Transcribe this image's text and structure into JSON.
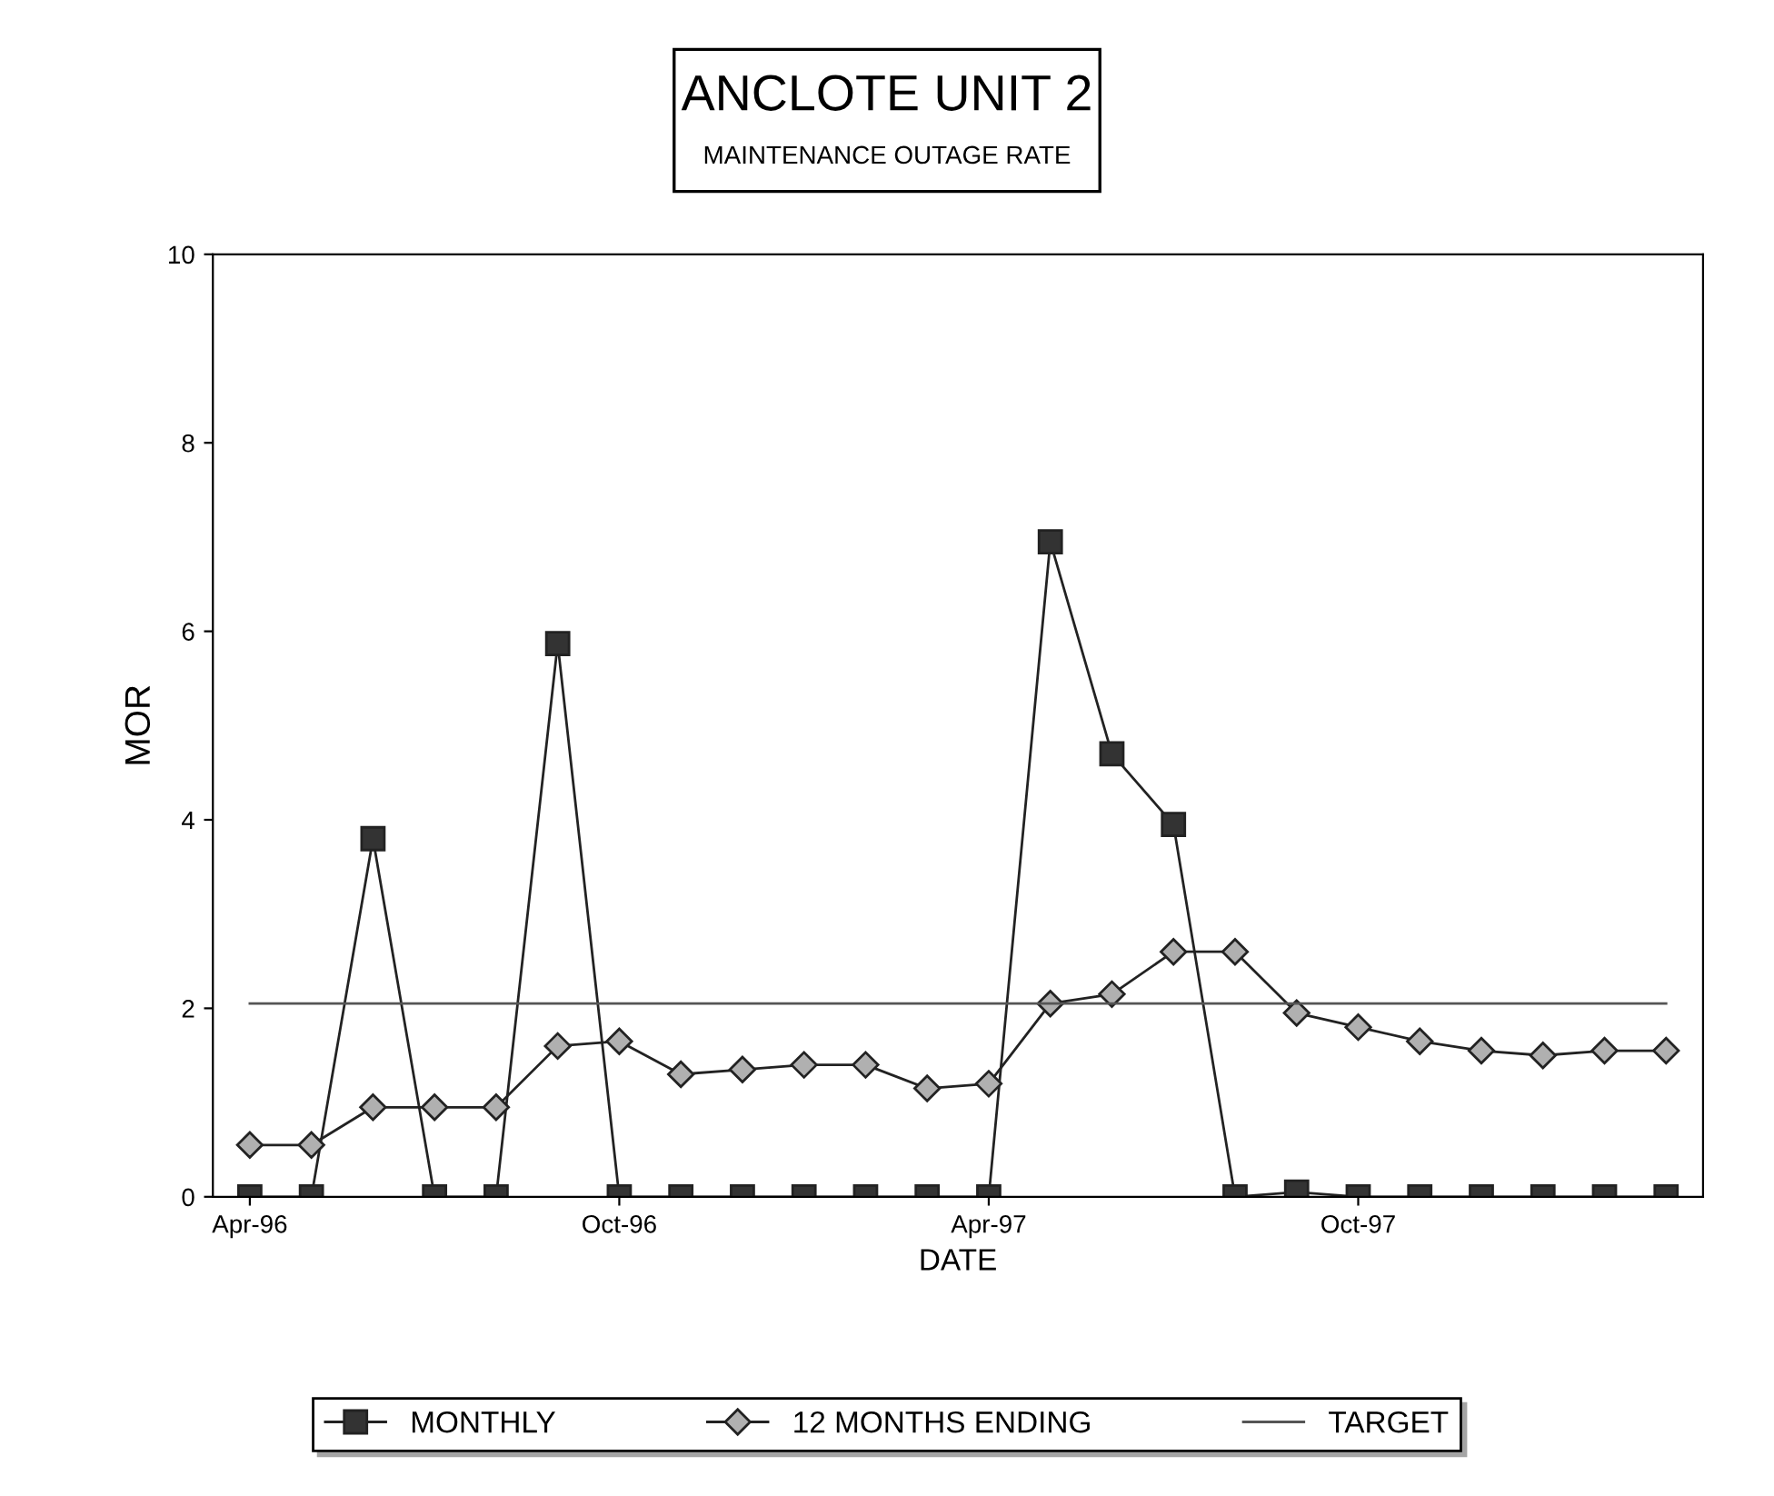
{
  "chart_data": {
    "type": "line",
    "title": "ANCLOTE UNIT 2",
    "subtitle": "MAINTENANCE OUTAGE RATE",
    "xlabel": "DATE",
    "ylabel": "MOR",
    "categories": [
      "Apr-96",
      null,
      null,
      null,
      null,
      null,
      "Oct-96",
      null,
      null,
      null,
      null,
      null,
      "Apr-97",
      null,
      null,
      null,
      null,
      null,
      "Oct-97",
      null,
      null,
      null,
      null,
      null
    ],
    "series": [
      {
        "name": "MONTHLY",
        "color": "#333333",
        "marker": "square",
        "values": [
          0,
          0,
          3.8,
          0,
          0,
          5.87,
          0,
          0,
          0,
          0,
          0,
          0,
          0,
          6.95,
          4.7,
          3.95,
          0,
          0.05,
          0,
          0,
          0,
          0,
          0,
          0
        ]
      },
      {
        "name": "12 MONTHS ENDING",
        "color": "#b0b0b0",
        "marker": "diamond",
        "values": [
          0.55,
          0.55,
          0.95,
          0.95,
          0.95,
          1.6,
          1.65,
          1.3,
          1.35,
          1.4,
          1.4,
          1.15,
          1.2,
          2.05,
          2.15,
          2.6,
          2.6,
          1.95,
          1.8,
          1.65,
          1.55,
          1.5,
          1.55,
          1.55
        ]
      },
      {
        "name": "TARGET",
        "color": "#555555",
        "marker": "none",
        "values": [
          2.05,
          2.05,
          2.05,
          2.05,
          2.05,
          2.05,
          2.05,
          2.05,
          2.05,
          2.05,
          2.05,
          2.05,
          2.05,
          2.05,
          2.05,
          2.05,
          2.05,
          2.05,
          2.05,
          2.05,
          2.05,
          2.05,
          2.05,
          2.05
        ]
      }
    ],
    "ylim": [
      0,
      10
    ],
    "yticks": [
      0,
      2,
      4,
      6,
      8,
      10
    ],
    "grid": false,
    "legend": "bottom",
    "line_style": "solid"
  }
}
